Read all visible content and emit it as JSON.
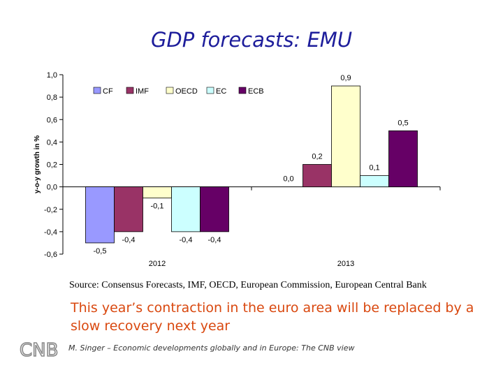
{
  "slide": {
    "title": "GDP forecasts: EMU",
    "source": "Source: Consensus Forecasts, IMF, OECD, European Commission, European Central Bank",
    "takeaway": "This year’s contraction in the euro area will be replaced by a slow recovery next year",
    "footer": "M. Singer – Economic developments globally and in Europe: The CNB view",
    "logo_text": "CNB"
  },
  "chart_data": {
    "type": "bar",
    "categories": [
      "2012",
      "2013"
    ],
    "series": [
      {
        "name": "CF",
        "color": "#9999ff",
        "values": [
          -0.5,
          0.0
        ],
        "labels": [
          "-0,5",
          "0,0"
        ]
      },
      {
        "name": "IMF",
        "color": "#993366",
        "values": [
          -0.4,
          0.2
        ],
        "labels": [
          "-0,4",
          "0,2"
        ]
      },
      {
        "name": "OECD",
        "color": "#ffffcc",
        "values": [
          -0.1,
          0.9
        ],
        "labels": [
          "-0,1",
          "0,9"
        ]
      },
      {
        "name": "EC",
        "color": "#ccffff",
        "values": [
          -0.4,
          0.1
        ],
        "labels": [
          "-0,4",
          "0,1"
        ]
      },
      {
        "name": "ECB",
        "color": "#660066",
        "values": [
          -0.4,
          0.5
        ],
        "labels": [
          "-0,4",
          "0,5"
        ]
      }
    ],
    "ylabel": "y-o-y growth in %",
    "ylim": [
      -0.6,
      1.0
    ],
    "yticks": [
      1.0,
      0.8,
      0.6,
      0.4,
      0.2,
      0.0,
      -0.2,
      -0.4,
      -0.6
    ],
    "ytick_labels": [
      "1,0",
      "0,8",
      "0,6",
      "0,4",
      "0,2",
      "0,0",
      "-0,2",
      "-0,4",
      "-0,6"
    ],
    "legend": "top-left, inside plot area",
    "grid": false
  }
}
